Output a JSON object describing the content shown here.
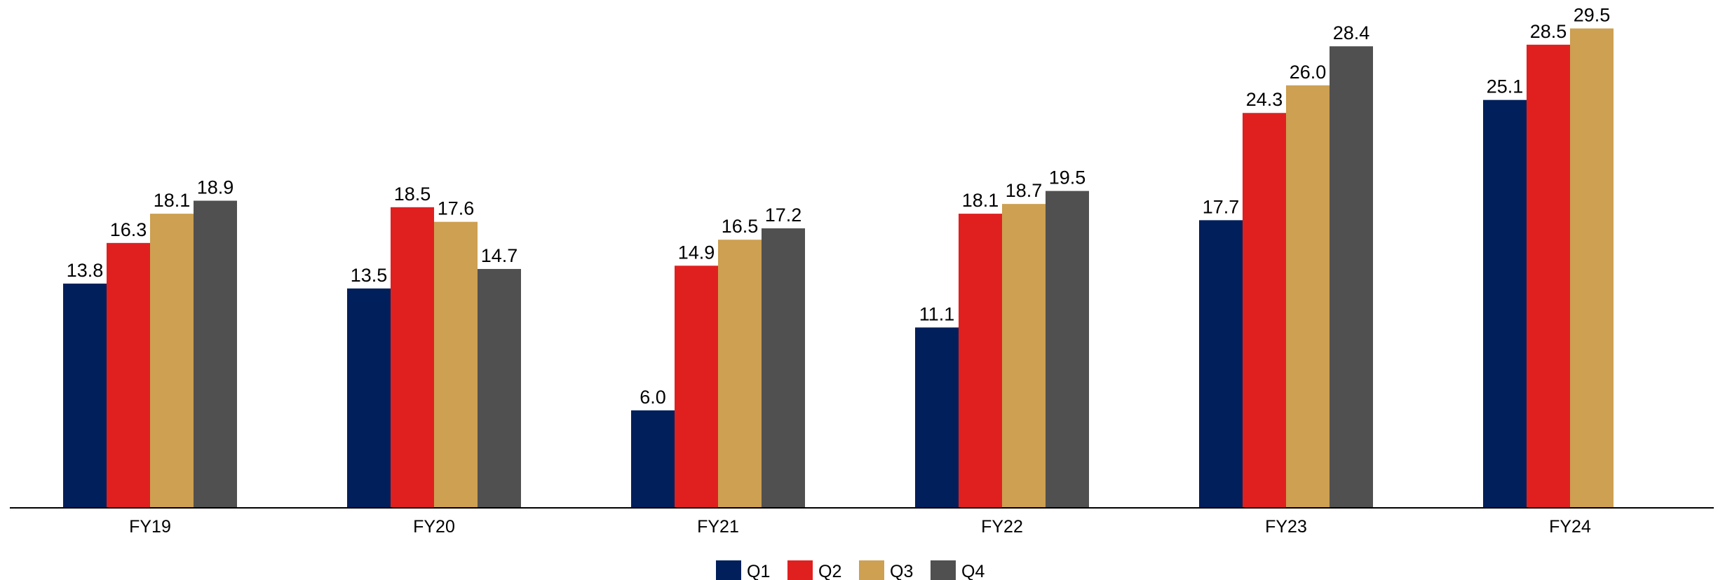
{
  "chart_data": {
    "type": "bar",
    "categories": [
      "FY19",
      "FY20",
      "FY21",
      "FY22",
      "FY23",
      "FY24"
    ],
    "series": [
      {
        "name": "Q1",
        "color": "#001F5B",
        "values": [
          13.8,
          13.5,
          6.0,
          11.1,
          17.7,
          25.1
        ]
      },
      {
        "name": "Q2",
        "color": "#E0201F",
        "values": [
          16.3,
          18.5,
          14.9,
          18.1,
          24.3,
          28.5
        ]
      },
      {
        "name": "Q3",
        "color": "#CDA052",
        "values": [
          18.1,
          17.6,
          16.5,
          18.7,
          26.0,
          29.5
        ]
      },
      {
        "name": "Q4",
        "color": "#505050",
        "values": [
          18.9,
          14.7,
          17.2,
          19.5,
          28.4,
          null
        ]
      }
    ],
    "value_labels": {
      "Q1": [
        "13.8",
        "13.5",
        "6.0",
        "11.1",
        "17.7",
        "25.1"
      ],
      "Q2": [
        "16.3",
        "18.5",
        "14.9",
        "18.1",
        "24.3",
        "28.5"
      ],
      "Q3": [
        "18.1",
        "17.6",
        "16.5",
        "18.7",
        "26.0",
        "29.5"
      ],
      "Q4": [
        "18.9",
        "14.7",
        "17.2",
        "19.5",
        "28.4",
        null
      ]
    },
    "title": "",
    "xlabel": "",
    "ylabel": "",
    "ylim": [
      0,
      30
    ],
    "grid": false,
    "y_axis_visible": false,
    "legend_position": "bottom-center"
  }
}
